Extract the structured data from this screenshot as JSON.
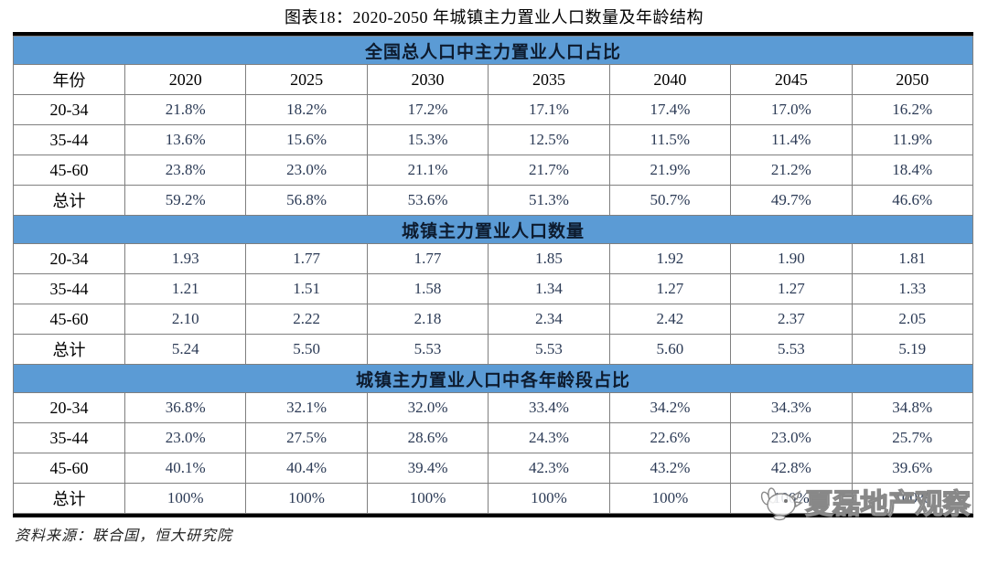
{
  "page": {
    "watermark": {
      "text": "夏磊地产观察",
      "icon": "bird-icon"
    }
  },
  "colors": {
    "header_blue": "#5b9bd5",
    "value_text": "#2b3a55",
    "grid_border": "#7f7f7f",
    "frame_border": "#000000",
    "watermark_text": "#ffffff"
  },
  "chart_data": {
    "type": "table",
    "title": "图表18：2020-2050 年城镇主力置业人口数量及年龄结构",
    "source": "资料来源：联合国，恒大研究院",
    "columns": [
      "年份",
      "2020",
      "2025",
      "2030",
      "2035",
      "2040",
      "2045",
      "2050"
    ],
    "sections": [
      {
        "title": "全国总人口中主力置业人口占比",
        "rows": [
          {
            "label": "20-34",
            "values": [
              "21.8%",
              "18.2%",
              "17.2%",
              "17.1%",
              "17.4%",
              "17.0%",
              "16.2%"
            ]
          },
          {
            "label": "35-44",
            "values": [
              "13.6%",
              "15.6%",
              "15.3%",
              "12.5%",
              "11.5%",
              "11.4%",
              "11.9%"
            ]
          },
          {
            "label": "45-60",
            "values": [
              "23.8%",
              "23.0%",
              "21.1%",
              "21.7%",
              "21.9%",
              "21.2%",
              "18.4%"
            ]
          },
          {
            "label": "总计",
            "values": [
              "59.2%",
              "56.8%",
              "53.6%",
              "51.3%",
              "50.7%",
              "49.7%",
              "46.6%"
            ]
          }
        ]
      },
      {
        "title": "城镇主力置业人口数量",
        "rows": [
          {
            "label": "20-34",
            "values": [
              "1.93",
              "1.77",
              "1.77",
              "1.85",
              "1.92",
              "1.90",
              "1.81"
            ]
          },
          {
            "label": "35-44",
            "values": [
              "1.21",
              "1.51",
              "1.58",
              "1.34",
              "1.27",
              "1.27",
              "1.33"
            ]
          },
          {
            "label": "45-60",
            "values": [
              "2.10",
              "2.22",
              "2.18",
              "2.34",
              "2.42",
              "2.37",
              "2.05"
            ]
          },
          {
            "label": "总计",
            "values": [
              "5.24",
              "5.50",
              "5.53",
              "5.53",
              "5.60",
              "5.53",
              "5.19"
            ]
          }
        ]
      },
      {
        "title": "城镇主力置业人口中各年龄段占比",
        "rows": [
          {
            "label": "20-34",
            "values": [
              "36.8%",
              "32.1%",
              "32.0%",
              "33.4%",
              "34.2%",
              "34.3%",
              "34.8%"
            ]
          },
          {
            "label": "35-44",
            "values": [
              "23.0%",
              "27.5%",
              "28.6%",
              "24.3%",
              "22.6%",
              "23.0%",
              "25.7%"
            ]
          },
          {
            "label": "45-60",
            "values": [
              "40.1%",
              "40.4%",
              "39.4%",
              "42.3%",
              "43.2%",
              "42.8%",
              "39.6%"
            ]
          },
          {
            "label": "总计",
            "values": [
              "100%",
              "100%",
              "100%",
              "100%",
              "100%",
              "100%",
              "100%"
            ]
          }
        ]
      }
    ]
  }
}
